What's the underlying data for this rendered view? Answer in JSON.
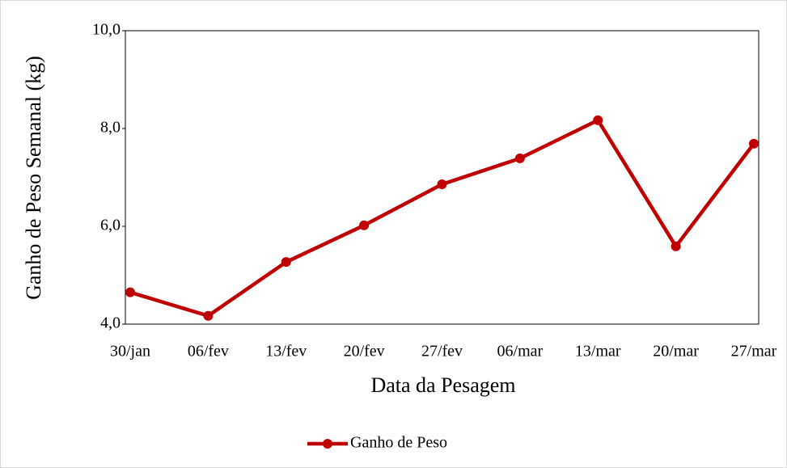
{
  "chart_data": {
    "type": "line",
    "x_label": "Data da Pesagem",
    "y_label": "Ganho de Peso Semanal (kg)",
    "categories": [
      "30/jan",
      "06/fev",
      "13/fev",
      "20/fev",
      "27/fev",
      "06/mar",
      "13/mar",
      "20/mar",
      "27/mar"
    ],
    "series": [
      {
        "name": "Ganho de Peso",
        "color": "#c00000",
        "values": [
          4.65,
          4.17,
          5.27,
          6.02,
          6.86,
          7.39,
          8.17,
          5.59,
          7.69
        ]
      }
    ],
    "ylim": [
      4,
      10
    ],
    "yticks": [
      {
        "value": 4,
        "label": "4,0"
      },
      {
        "value": 6,
        "label": "6,0"
      },
      {
        "value": 8,
        "label": "8,0"
      },
      {
        "value": 10,
        "label": "10,0"
      }
    ],
    "grid": false,
    "legend": "bottom"
  }
}
